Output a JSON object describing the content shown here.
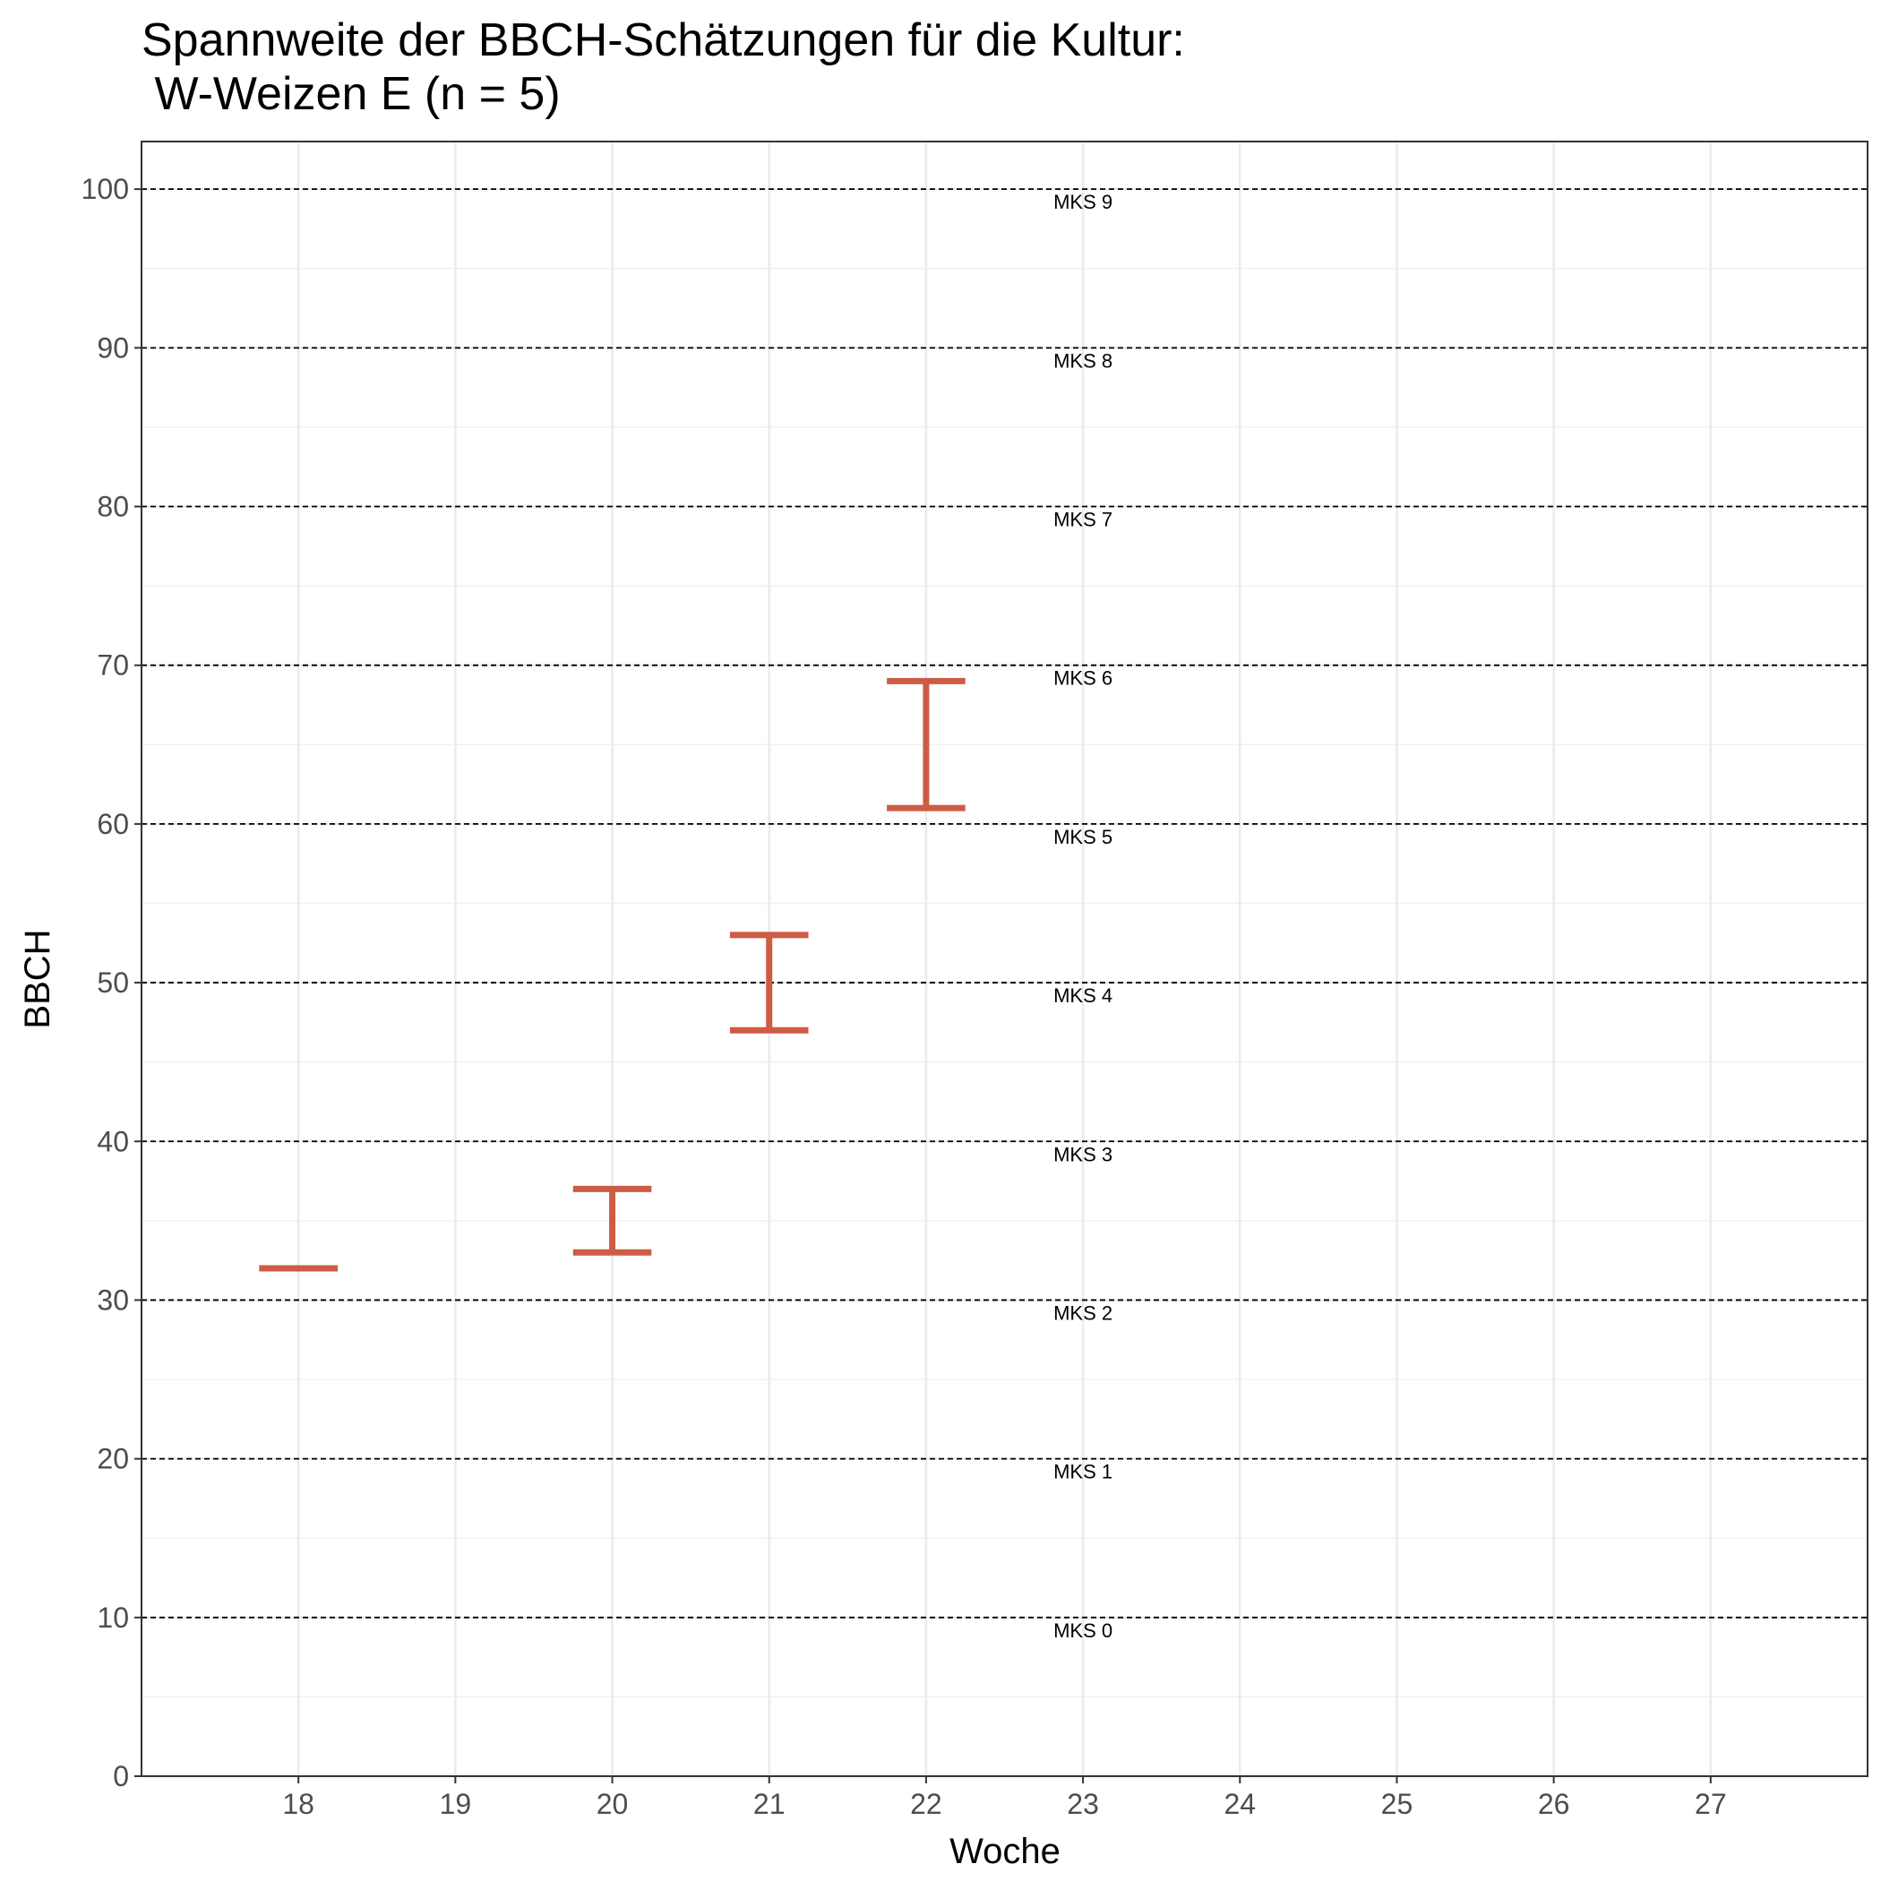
{
  "chart_data": {
    "type": "errorbar",
    "title_line1": "Spannweite der BBCH-Schätzungen für die Kultur:",
    "title_line2": " W-Weizen E (n = 5)",
    "xlabel": "Woche",
    "ylabel": "BBCH",
    "xlim": [
      17,
      28
    ],
    "ylim": [
      0,
      103
    ],
    "x_ticks": [
      18,
      19,
      20,
      21,
      22,
      23,
      24,
      25,
      26,
      27
    ],
    "y_ticks": [
      0,
      10,
      20,
      30,
      40,
      50,
      60,
      70,
      80,
      90,
      100
    ],
    "grid": true,
    "ranges": [
      {
        "week": 18,
        "min": 32,
        "max": 32
      },
      {
        "week": 20,
        "min": 33,
        "max": 37
      },
      {
        "week": 21,
        "min": 47,
        "max": 53
      },
      {
        "week": 22,
        "min": 61,
        "max": 69
      }
    ],
    "range_color": "#cd5c45",
    "reference_lines": [
      {
        "y": 10,
        "label": "MKS 0"
      },
      {
        "y": 20,
        "label": "MKS 1"
      },
      {
        "y": 30,
        "label": "MKS 2"
      },
      {
        "y": 40,
        "label": "MKS 3"
      },
      {
        "y": 50,
        "label": "MKS 4"
      },
      {
        "y": 60,
        "label": "MKS 5"
      },
      {
        "y": 70,
        "label": "MKS 6"
      },
      {
        "y": 80,
        "label": "MKS 7"
      },
      {
        "y": 90,
        "label": "MKS 8"
      },
      {
        "y": 100,
        "label": "MKS 9"
      }
    ],
    "reference_label_x": 23
  }
}
